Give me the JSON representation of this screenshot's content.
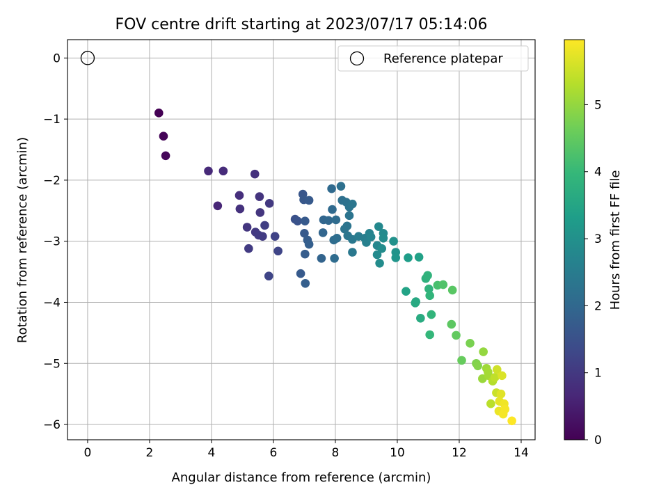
{
  "chart_data": {
    "type": "scatter",
    "title": "FOV centre drift starting at 2023/07/17 05:14:06",
    "xlabel": "Angular distance from reference (arcmin)",
    "ylabel": "Rotation from reference (arcmin)",
    "xlim": [
      -0.65,
      14.45
    ],
    "ylim": [
      -6.25,
      0.3
    ],
    "xticks": [
      0,
      2,
      4,
      6,
      8,
      10,
      12,
      14
    ],
    "xtick_labels": [
      "0",
      "2",
      "4",
      "6",
      "8",
      "10",
      "12",
      "14"
    ],
    "yticks": [
      0,
      -1,
      -2,
      -3,
      -4,
      -5,
      -6
    ],
    "ytick_labels": [
      "0",
      "−1",
      "−2",
      "−3",
      "−4",
      "−5",
      "−6"
    ],
    "grid": true,
    "legend_position": "top-right",
    "legend": [
      {
        "label": "Reference platepar",
        "marker": "open-circle"
      }
    ],
    "reference_point": {
      "x": 0,
      "y": 0
    },
    "colorbar": {
      "label": "Hours from first FF file",
      "colormap": "viridis",
      "range": [
        0,
        5.97
      ],
      "ticks": [
        0,
        1,
        2,
        3,
        4,
        5
      ],
      "tick_labels": [
        "0",
        "1",
        "2",
        "3",
        "4",
        "5"
      ]
    },
    "colormap_stops": [
      "#440154",
      "#482878",
      "#3e4989",
      "#31688e",
      "#26828e",
      "#1f9e89",
      "#35b779",
      "#6ece58",
      "#b5de2b",
      "#fde725"
    ],
    "points": [
      {
        "x": 2.3,
        "y": -0.9,
        "h": 0.0
      },
      {
        "x": 2.45,
        "y": -1.28,
        "h": 0.05
      },
      {
        "x": 2.52,
        "y": -1.6,
        "h": 0.1
      },
      {
        "x": 3.9,
        "y": -1.85,
        "h": 0.7
      },
      {
        "x": 4.38,
        "y": -1.85,
        "h": 0.75
      },
      {
        "x": 5.4,
        "y": -1.9,
        "h": 0.85
      },
      {
        "x": 4.2,
        "y": -2.42,
        "h": 0.65
      },
      {
        "x": 4.9,
        "y": -2.25,
        "h": 0.8
      },
      {
        "x": 4.92,
        "y": -2.47,
        "h": 0.85
      },
      {
        "x": 5.55,
        "y": -2.27,
        "h": 0.9
      },
      {
        "x": 5.57,
        "y": -2.53,
        "h": 0.95
      },
      {
        "x": 5.87,
        "y": -2.38,
        "h": 1.0
      },
      {
        "x": 5.15,
        "y": -2.77,
        "h": 0.95
      },
      {
        "x": 5.42,
        "y": -2.85,
        "h": 1.0
      },
      {
        "x": 5.52,
        "y": -2.9,
        "h": 1.05
      },
      {
        "x": 5.65,
        "y": -2.92,
        "h": 1.05
      },
      {
        "x": 5.72,
        "y": -2.74,
        "h": 1.1
      },
      {
        "x": 6.05,
        "y": -2.92,
        "h": 1.2
      },
      {
        "x": 5.2,
        "y": -3.12,
        "h": 1.05
      },
      {
        "x": 6.15,
        "y": -3.16,
        "h": 1.25
      },
      {
        "x": 5.85,
        "y": -3.57,
        "h": 1.25
      },
      {
        "x": 6.7,
        "y": -2.64,
        "h": 1.5
      },
      {
        "x": 6.78,
        "y": -2.67,
        "h": 1.55
      },
      {
        "x": 6.95,
        "y": -2.23,
        "h": 1.6
      },
      {
        "x": 6.98,
        "y": -2.32,
        "h": 1.65
      },
      {
        "x": 7.15,
        "y": -2.33,
        "h": 1.7
      },
      {
        "x": 7.02,
        "y": -2.67,
        "h": 1.7
      },
      {
        "x": 7.0,
        "y": -2.87,
        "h": 1.7
      },
      {
        "x": 7.1,
        "y": -2.98,
        "h": 1.75
      },
      {
        "x": 7.15,
        "y": -3.05,
        "h": 1.8
      },
      {
        "x": 7.02,
        "y": -3.21,
        "h": 1.75
      },
      {
        "x": 6.88,
        "y": -3.53,
        "h": 1.7
      },
      {
        "x": 7.03,
        "y": -3.69,
        "h": 1.8
      },
      {
        "x": 7.55,
        "y": -3.28,
        "h": 1.9
      },
      {
        "x": 7.6,
        "y": -2.86,
        "h": 1.95
      },
      {
        "x": 7.62,
        "y": -2.65,
        "h": 1.95
      },
      {
        "x": 7.78,
        "y": -2.66,
        "h": 2.0
      },
      {
        "x": 7.9,
        "y": -2.48,
        "h": 2.05
      },
      {
        "x": 7.88,
        "y": -2.14,
        "h": 2.05
      },
      {
        "x": 8.02,
        "y": -2.65,
        "h": 2.1
      },
      {
        "x": 7.95,
        "y": -2.98,
        "h": 2.1
      },
      {
        "x": 7.97,
        "y": -3.28,
        "h": 2.1
      },
      {
        "x": 8.05,
        "y": -2.95,
        "h": 2.15
      },
      {
        "x": 8.18,
        "y": -2.1,
        "h": 2.2
      },
      {
        "x": 8.22,
        "y": -2.33,
        "h": 2.2
      },
      {
        "x": 8.35,
        "y": -2.36,
        "h": 2.25
      },
      {
        "x": 8.45,
        "y": -2.44,
        "h": 2.3
      },
      {
        "x": 8.55,
        "y": -2.39,
        "h": 2.35
      },
      {
        "x": 8.45,
        "y": -2.58,
        "h": 2.3
      },
      {
        "x": 8.38,
        "y": -2.75,
        "h": 2.3
      },
      {
        "x": 8.3,
        "y": -2.8,
        "h": 2.3
      },
      {
        "x": 8.4,
        "y": -2.91,
        "h": 2.35
      },
      {
        "x": 8.55,
        "y": -2.97,
        "h": 2.4
      },
      {
        "x": 8.55,
        "y": -3.18,
        "h": 2.4
      },
      {
        "x": 8.75,
        "y": -2.92,
        "h": 2.5
      },
      {
        "x": 8.95,
        "y": -2.95,
        "h": 2.55
      },
      {
        "x": 9.0,
        "y": -3.02,
        "h": 2.6
      },
      {
        "x": 9.1,
        "y": -2.87,
        "h": 2.65
      },
      {
        "x": 9.15,
        "y": -2.93,
        "h": 2.7
      },
      {
        "x": 9.35,
        "y": -3.07,
        "h": 2.75
      },
      {
        "x": 9.4,
        "y": -2.76,
        "h": 2.8
      },
      {
        "x": 9.55,
        "y": -2.87,
        "h": 2.85
      },
      {
        "x": 9.55,
        "y": -2.95,
        "h": 2.9
      },
      {
        "x": 9.35,
        "y": -3.22,
        "h": 2.85
      },
      {
        "x": 9.5,
        "y": -3.12,
        "h": 2.9
      },
      {
        "x": 9.43,
        "y": -3.36,
        "h": 2.9
      },
      {
        "x": 9.88,
        "y": -3.0,
        "h": 3.0
      },
      {
        "x": 9.95,
        "y": -3.18,
        "h": 3.05
      },
      {
        "x": 9.95,
        "y": -3.27,
        "h": 3.1
      },
      {
        "x": 10.35,
        "y": -3.27,
        "h": 3.3
      },
      {
        "x": 10.7,
        "y": -3.26,
        "h": 3.4
      },
      {
        "x": 10.28,
        "y": -3.82,
        "h": 3.45
      },
      {
        "x": 10.6,
        "y": -3.99,
        "h": 3.55
      },
      {
        "x": 10.58,
        "y": -4.01,
        "h": 3.6
      },
      {
        "x": 10.75,
        "y": -4.26,
        "h": 3.65
      },
      {
        "x": 10.92,
        "y": -3.61,
        "h": 3.8
      },
      {
        "x": 10.98,
        "y": -3.56,
        "h": 3.85
      },
      {
        "x": 11.02,
        "y": -3.78,
        "h": 3.85
      },
      {
        "x": 11.05,
        "y": -3.89,
        "h": 3.9
      },
      {
        "x": 11.1,
        "y": -4.2,
        "h": 3.9
      },
      {
        "x": 11.05,
        "y": -4.53,
        "h": 3.95
      },
      {
        "x": 11.3,
        "y": -3.72,
        "h": 4.2
      },
      {
        "x": 11.48,
        "y": -3.71,
        "h": 4.3
      },
      {
        "x": 11.78,
        "y": -3.8,
        "h": 4.4
      },
      {
        "x": 11.75,
        "y": -4.36,
        "h": 4.45
      },
      {
        "x": 11.9,
        "y": -4.54,
        "h": 4.5
      },
      {
        "x": 12.08,
        "y": -4.95,
        "h": 4.55
      },
      {
        "x": 12.35,
        "y": -4.67,
        "h": 4.75
      },
      {
        "x": 12.55,
        "y": -5.0,
        "h": 4.8
      },
      {
        "x": 12.6,
        "y": -5.04,
        "h": 4.85
      },
      {
        "x": 12.78,
        "y": -4.81,
        "h": 5.0
      },
      {
        "x": 12.75,
        "y": -5.25,
        "h": 5.05
      },
      {
        "x": 12.88,
        "y": -5.08,
        "h": 5.1
      },
      {
        "x": 12.93,
        "y": -5.14,
        "h": 5.15
      },
      {
        "x": 12.95,
        "y": -5.2,
        "h": 5.15
      },
      {
        "x": 13.08,
        "y": -5.29,
        "h": 5.3
      },
      {
        "x": 13.02,
        "y": -5.66,
        "h": 5.35
      },
      {
        "x": 13.15,
        "y": -5.23,
        "h": 5.4
      },
      {
        "x": 13.2,
        "y": -5.48,
        "h": 5.5
      },
      {
        "x": 13.22,
        "y": -5.1,
        "h": 5.55
      },
      {
        "x": 13.38,
        "y": -5.2,
        "h": 5.65
      },
      {
        "x": 13.35,
        "y": -5.5,
        "h": 5.7
      },
      {
        "x": 13.3,
        "y": -5.62,
        "h": 5.75
      },
      {
        "x": 13.28,
        "y": -5.78,
        "h": 5.8
      },
      {
        "x": 13.45,
        "y": -5.66,
        "h": 5.85
      },
      {
        "x": 13.48,
        "y": -5.75,
        "h": 5.9
      },
      {
        "x": 13.42,
        "y": -5.83,
        "h": 5.9
      },
      {
        "x": 13.7,
        "y": -5.94,
        "h": 5.97
      }
    ]
  }
}
